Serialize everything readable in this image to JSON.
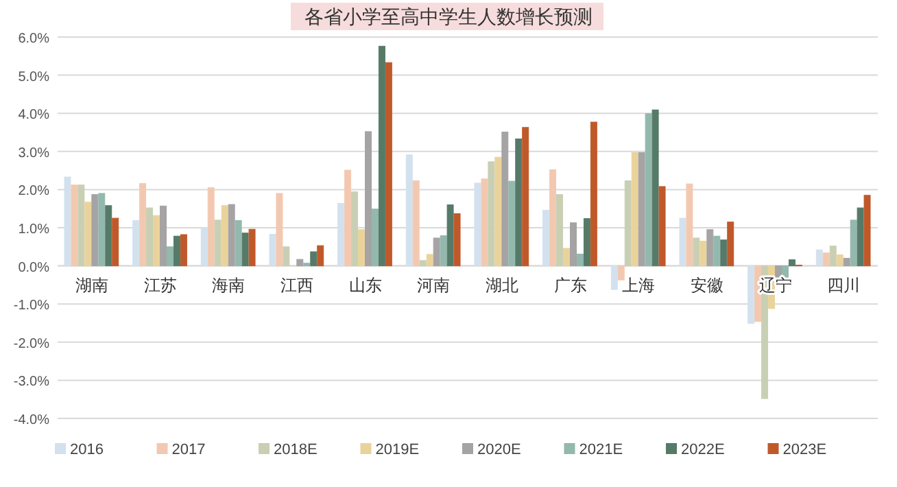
{
  "chart_data": {
    "type": "bar",
    "title": "各省小学至高中学生人数增长预测",
    "categories": [
      "湖南",
      "江苏",
      "海南",
      "江西",
      "山东",
      "河南",
      "湖北",
      "广东",
      "上海",
      "安徽",
      "辽宁",
      "四川"
    ],
    "series": [
      {
        "name": "2016",
        "color": "#d3e1ee",
        "values": [
          2.33,
          1.19,
          1.01,
          0.83,
          1.64,
          2.91,
          2.17,
          1.46,
          -0.62,
          1.25,
          -1.51,
          0.42
        ]
      },
      {
        "name": "2017",
        "color": "#f2c9b0",
        "values": [
          2.12,
          2.16,
          2.05,
          1.9,
          2.51,
          2.23,
          2.28,
          2.52,
          -0.37,
          2.15,
          -1.46,
          0.34
        ]
      },
      {
        "name": "2018E",
        "color": "#c9cfb3",
        "values": [
          2.12,
          1.52,
          1.2,
          0.5,
          1.94,
          0.14,
          2.73,
          1.87,
          2.23,
          0.73,
          -3.48,
          0.52
        ]
      },
      {
        "name": "2019E",
        "color": "#ead39b",
        "values": [
          1.67,
          1.32,
          1.58,
          0,
          0.95,
          0.3,
          2.85,
          0.46,
          2.97,
          0.65,
          -1.12,
          0.29
        ]
      },
      {
        "name": "2020E",
        "color": "#a5a3a3",
        "values": [
          1.87,
          1.57,
          1.61,
          0.17,
          3.52,
          0.73,
          3.51,
          1.13,
          2.97,
          0.95,
          -0.31,
          0.2
        ]
      },
      {
        "name": "2021E",
        "color": "#93b8ae",
        "values": [
          1.9,
          0.5,
          1.19,
          0.07,
          1.49,
          0.79,
          2.22,
          0.31,
          3.99,
          0.78,
          -0.31,
          1.2
        ]
      },
      {
        "name": "2022E",
        "color": "#567a68",
        "values": [
          1.58,
          0.78,
          0.86,
          0.37,
          5.76,
          1.6,
          3.33,
          1.24,
          4.09,
          0.68,
          0.16,
          1.52
        ]
      },
      {
        "name": "2023E",
        "color": "#c0592a",
        "values": [
          1.25,
          0.82,
          0.96,
          0.53,
          5.33,
          1.37,
          3.63,
          3.77,
          2.08,
          1.15,
          0.02,
          1.85
        ]
      }
    ],
    "ylim": [
      -4,
      6
    ],
    "yticks": [
      {
        "value": -4,
        "label": "-4.0%"
      },
      {
        "value": -3,
        "label": "-3.0%"
      },
      {
        "value": -2,
        "label": "-2.0%"
      },
      {
        "value": -1,
        "label": "-1.0%"
      },
      {
        "value": 0,
        "label": "0.0%"
      },
      {
        "value": 1,
        "label": "1.0%"
      },
      {
        "value": 2,
        "label": "2.0%"
      },
      {
        "value": 3,
        "label": "3.0%"
      },
      {
        "value": 4,
        "label": "4.0%"
      },
      {
        "value": 5,
        "label": "5.0%"
      },
      {
        "value": 6,
        "label": "6.0%"
      }
    ],
    "grid": "y",
    "legend": "bottom"
  }
}
